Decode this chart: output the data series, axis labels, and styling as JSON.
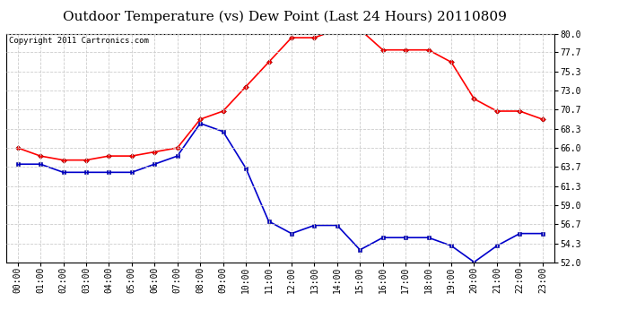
{
  "title": "Outdoor Temperature (vs) Dew Point (Last 24 Hours) 20110809",
  "copyright_text": "Copyright 2011 Cartronics.com",
  "hours": [
    0,
    1,
    2,
    3,
    4,
    5,
    6,
    7,
    8,
    9,
    10,
    11,
    12,
    13,
    14,
    15,
    16,
    17,
    18,
    19,
    20,
    21,
    22,
    23
  ],
  "temp": [
    66.0,
    65.0,
    64.5,
    64.5,
    65.0,
    65.0,
    65.5,
    66.0,
    69.5,
    70.5,
    73.5,
    76.5,
    79.5,
    79.5,
    80.5,
    80.5,
    78.0,
    78.0,
    78.0,
    76.5,
    72.0,
    70.5,
    70.5,
    69.5
  ],
  "dew": [
    64.0,
    64.0,
    63.0,
    63.0,
    63.0,
    63.0,
    64.0,
    65.0,
    69.0,
    68.0,
    63.5,
    57.0,
    55.5,
    56.5,
    56.5,
    53.5,
    55.0,
    55.0,
    55.0,
    54.0,
    52.0,
    54.0,
    55.5,
    55.5
  ],
  "temp_color": "#ff0000",
  "dew_color": "#0000cc",
  "ylim": [
    52.0,
    80.0
  ],
  "yticks": [
    52.0,
    54.3,
    56.7,
    59.0,
    61.3,
    63.7,
    66.0,
    68.3,
    70.7,
    73.0,
    75.3,
    77.7,
    80.0
  ],
  "background_color": "#ffffff",
  "plot_bg_color": "#ffffff",
  "grid_color": "#cccccc",
  "title_fontsize": 11,
  "tick_label_fontsize": 7,
  "copyright_fontsize": 6.5
}
